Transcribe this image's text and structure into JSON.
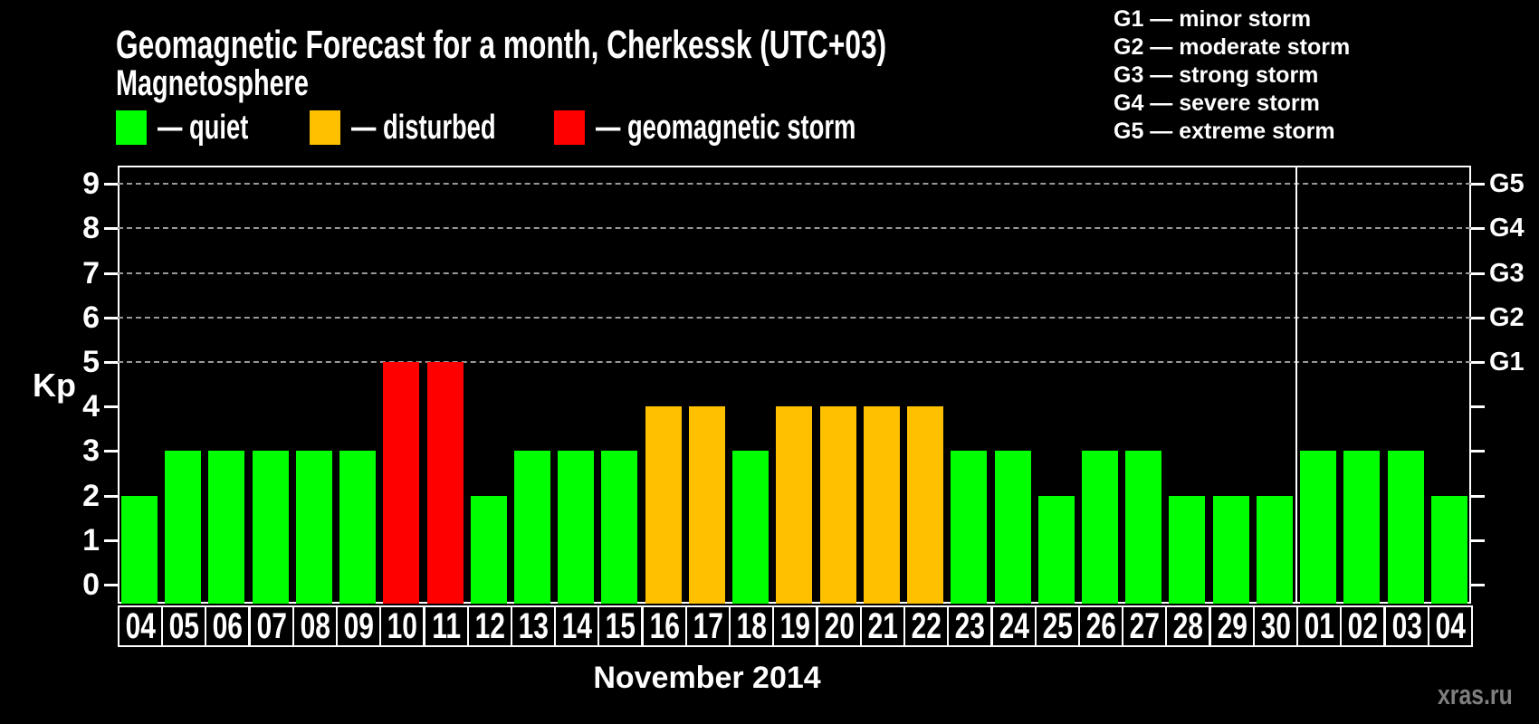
{
  "title": "Geomagnetic Forecast for a month, Cherkessk (UTC+03)",
  "watermark": "xras.ru",
  "legend": {
    "heading": "Magnetosphere",
    "items": [
      {
        "id": "quiet",
        "label": "— quiet",
        "color": "#00ff00"
      },
      {
        "id": "disturbed",
        "label": "— disturbed",
        "color": "#ffc000"
      },
      {
        "id": "storm",
        "label": "— geomagnetic storm",
        "color": "#ff0000"
      }
    ]
  },
  "storm_scale_legend": [
    "G1 — minor storm",
    "G2 — moderate storm",
    "G3 — strong storm",
    "G4 — severe storm",
    "G5 — extreme storm"
  ],
  "colors": {
    "quiet": "#00ff00",
    "disturbed": "#ffc000",
    "storm": "#ff0000",
    "axis": "#ffffff",
    "gridline": "#999999",
    "watermark": "#7f7f7f",
    "background": "#000000"
  },
  "chart_data": {
    "type": "bar",
    "title": "Geomagnetic Forecast for a month, Cherkessk (UTC+03)",
    "xlabel": "November 2014",
    "ylabel": "Kp",
    "ylim": [
      0,
      9
    ],
    "y_ticks": [
      "0",
      "1",
      "2",
      "3",
      "4",
      "5",
      "6",
      "7",
      "8",
      "9"
    ],
    "gridlines_at": [
      5,
      6,
      7,
      8,
      9
    ],
    "grid": "dashed horizontal lines at Kp 5-9 (G1-G5 levels)",
    "legend_position": "top",
    "categories": [
      "04",
      "05",
      "06",
      "07",
      "08",
      "09",
      "10",
      "11",
      "12",
      "13",
      "14",
      "15",
      "16",
      "17",
      "18",
      "19",
      "20",
      "21",
      "22",
      "23",
      "24",
      "25",
      "26",
      "27",
      "28",
      "29",
      "30",
      "01",
      "02",
      "03",
      "04"
    ],
    "values": [
      2,
      3,
      3,
      3,
      3,
      3,
      5,
      5,
      2,
      3,
      3,
      3,
      4,
      4,
      3,
      4,
      4,
      4,
      4,
      3,
      3,
      2,
      3,
      3,
      2,
      2,
      2,
      3,
      3,
      3,
      2
    ],
    "statuses": [
      "quiet",
      "quiet",
      "quiet",
      "quiet",
      "quiet",
      "quiet",
      "storm",
      "storm",
      "quiet",
      "quiet",
      "quiet",
      "quiet",
      "disturbed",
      "disturbed",
      "quiet",
      "disturbed",
      "disturbed",
      "disturbed",
      "disturbed",
      "quiet",
      "quiet",
      "quiet",
      "quiet",
      "quiet",
      "quiet",
      "quiet",
      "quiet",
      "quiet",
      "quiet",
      "quiet",
      "quiet"
    ],
    "right_axis_labels": [
      {
        "label": "G1",
        "kp": 5
      },
      {
        "label": "G2",
        "kp": 6
      },
      {
        "label": "G3",
        "kp": 7
      },
      {
        "label": "G4",
        "kp": 8
      },
      {
        "label": "G5",
        "kp": 9
      }
    ],
    "month_boundary_after_index": 26
  }
}
